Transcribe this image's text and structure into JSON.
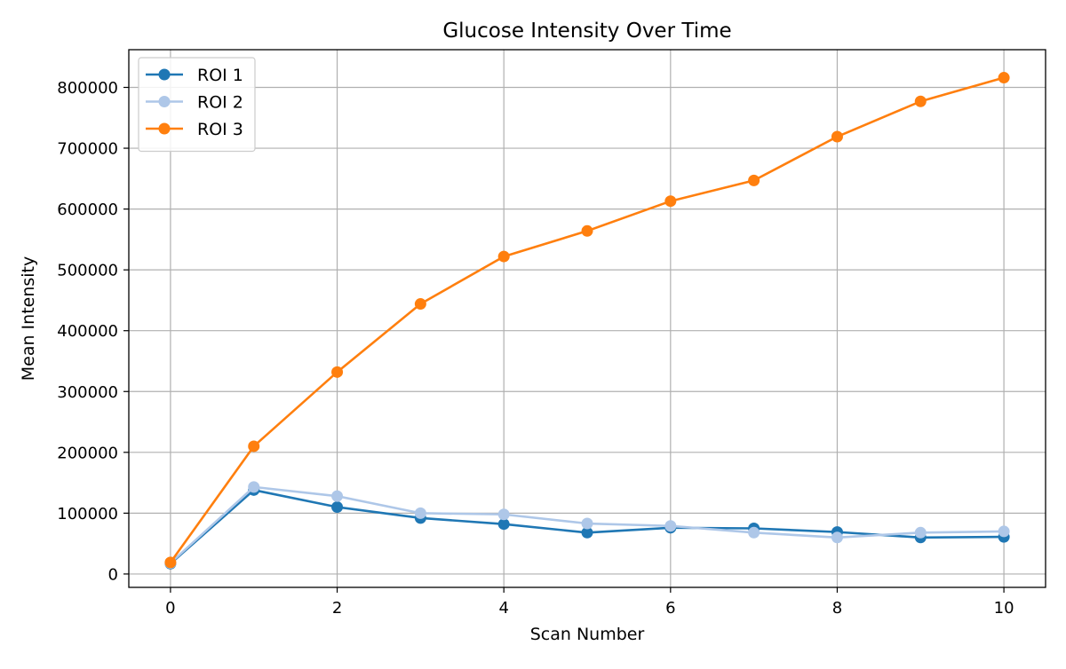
{
  "chart_data": {
    "type": "line",
    "title": "Glucose Intensity Over Time",
    "xlabel": "Scan Number",
    "ylabel": "Mean Intensity",
    "xlim": [
      -0.5,
      10.5
    ],
    "ylim": [
      -22000,
      862000
    ],
    "x_ticks": [
      0,
      2,
      4,
      6,
      8,
      10
    ],
    "y_ticks": [
      0,
      100000,
      200000,
      300000,
      400000,
      500000,
      600000,
      700000,
      800000
    ],
    "grid": true,
    "legend_position": "top-left",
    "x": [
      0,
      1,
      2,
      3,
      4,
      5,
      6,
      7,
      8,
      9,
      10
    ],
    "series": [
      {
        "name": "ROI 1",
        "color": "#1f77b4",
        "marker": "circle",
        "values": [
          17000,
          138000,
          110000,
          92000,
          82000,
          68000,
          76000,
          75000,
          69000,
          60000,
          61000
        ]
      },
      {
        "name": "ROI 2",
        "color": "#aec7e8",
        "marker": "circle",
        "values": [
          18000,
          143000,
          128000,
          100000,
          98000,
          83000,
          79000,
          68000,
          60000,
          68000,
          70000
        ]
      },
      {
        "name": "ROI 3",
        "color": "#ff7f0e",
        "marker": "circle",
        "values": [
          19000,
          210000,
          332000,
          444000,
          522000,
          564000,
          613000,
          647000,
          719000,
          777000,
          816000
        ]
      }
    ]
  }
}
